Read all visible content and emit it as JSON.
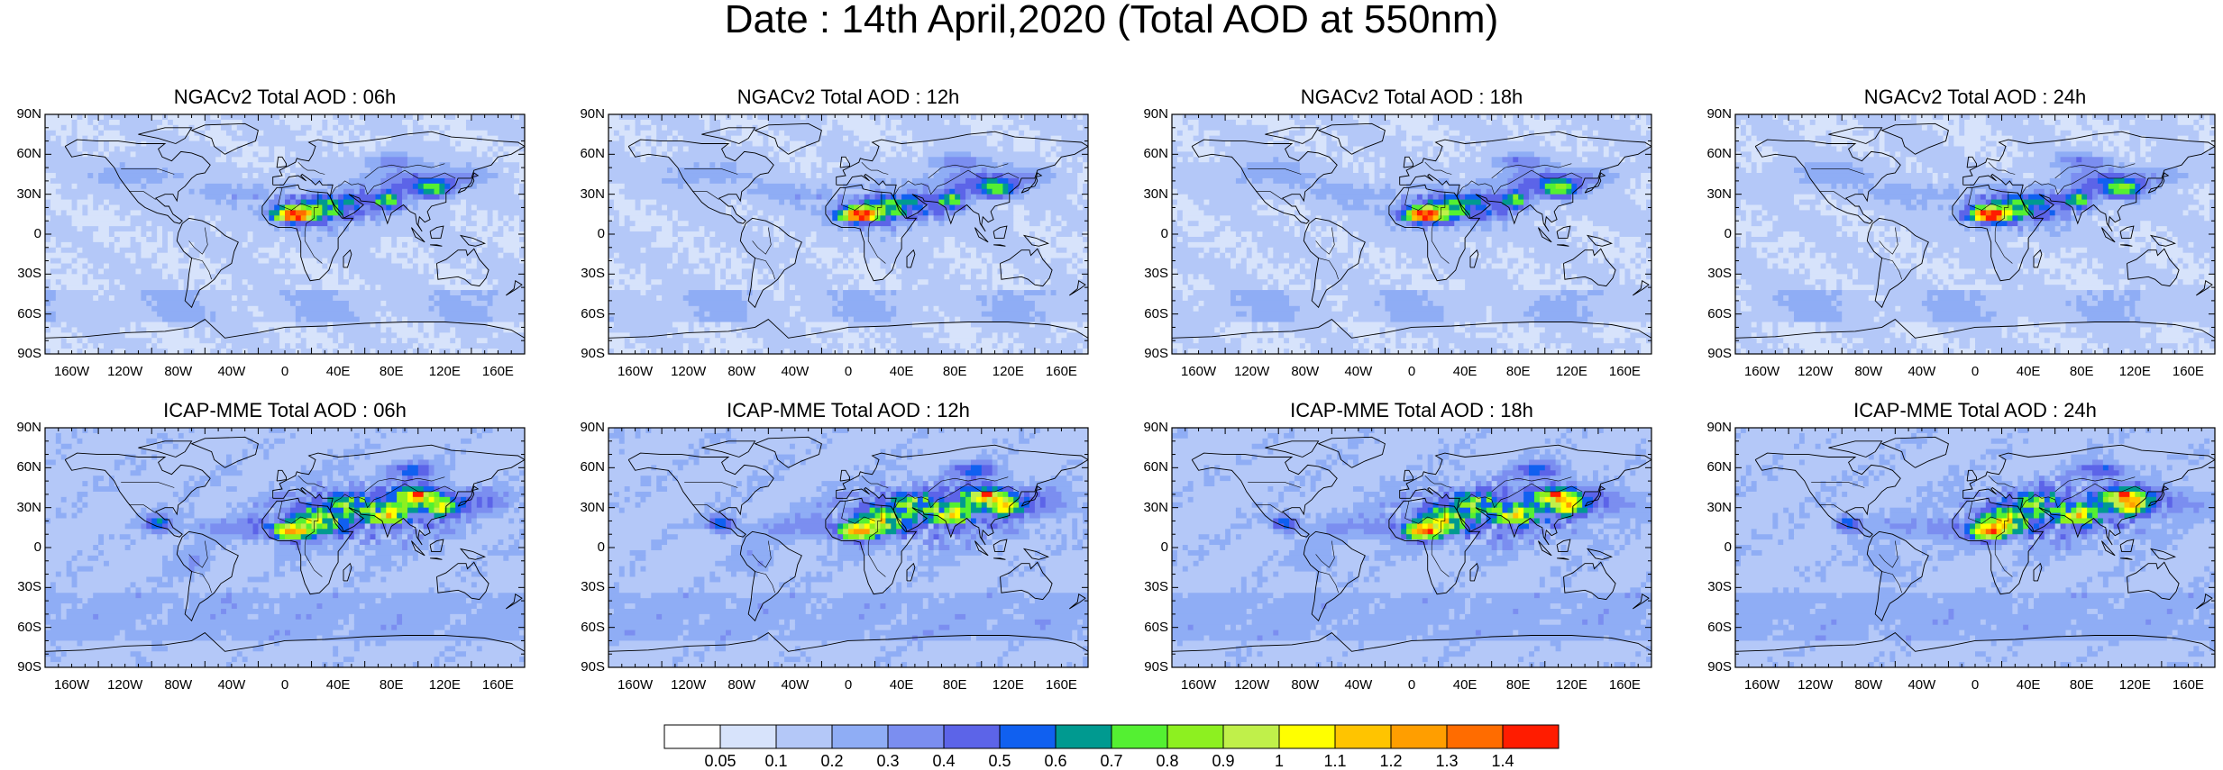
{
  "title": "Date : 14th April,2020 (Total AOD at 550nm)",
  "panels": [
    {
      "title": "NGACv2 Total AOD : 06h",
      "model": "ngac"
    },
    {
      "title": "NGACv2 Total AOD : 12h",
      "model": "ngac"
    },
    {
      "title": "NGACv2 Total AOD : 18h",
      "model": "ngac"
    },
    {
      "title": "NGACv2 Total AOD : 24h",
      "model": "ngac"
    },
    {
      "title": "ICAP-MME Total AOD : 06h",
      "model": "icap"
    },
    {
      "title": "ICAP-MME Total AOD : 12h",
      "model": "icap"
    },
    {
      "title": "ICAP-MME Total AOD : 18h",
      "model": "icap"
    },
    {
      "title": "ICAP-MME Total AOD : 24h",
      "model": "icap"
    }
  ],
  "lat_ticks": [
    "90N",
    "60N",
    "30N",
    "0",
    "30S",
    "60S",
    "90S"
  ],
  "lon_ticks": [
    "160W",
    "120W",
    "80W",
    "40W",
    "0",
    "40E",
    "80E",
    "120E",
    "160E"
  ],
  "colorbar": {
    "labels": [
      "0.05",
      "0.1",
      "0.2",
      "0.3",
      "0.4",
      "0.5",
      "0.6",
      "0.7",
      "0.8",
      "0.9",
      "1",
      "1.1",
      "1.2",
      "1.3",
      "1.4"
    ],
    "colors": [
      "#ffffff",
      "#d7e3fb",
      "#b4c8f8",
      "#8fadf5",
      "#7b8ef0",
      "#5c64e8",
      "#1060f0",
      "#009a90",
      "#54f032",
      "#8df020",
      "#c0f04a",
      "#ffff00",
      "#ffc400",
      "#ff9e00",
      "#ff6c00",
      "#ff1c00"
    ]
  },
  "chart_data": {
    "type": "heatmap",
    "title": "Date : 14th April,2020 (Total AOD at 550nm)",
    "variable": "Total AOD at 550nm",
    "panels": [
      "NGACv2 Total AOD : 06h",
      "NGACv2 Total AOD : 12h",
      "NGACv2 Total AOD : 18h",
      "NGACv2 Total AOD : 24h",
      "ICAP-MME Total AOD : 06h",
      "ICAP-MME Total AOD : 12h",
      "ICAP-MME Total AOD : 18h",
      "ICAP-MME Total AOD : 24h"
    ],
    "xlim": [
      -180,
      180
    ],
    "ylim": [
      -90,
      90
    ],
    "levels": [
      0.05,
      0.1,
      0.2,
      0.3,
      0.4,
      0.5,
      0.6,
      0.7,
      0.8,
      0.9,
      1,
      1.1,
      1.2,
      1.3,
      1.4
    ],
    "grid": false
  }
}
